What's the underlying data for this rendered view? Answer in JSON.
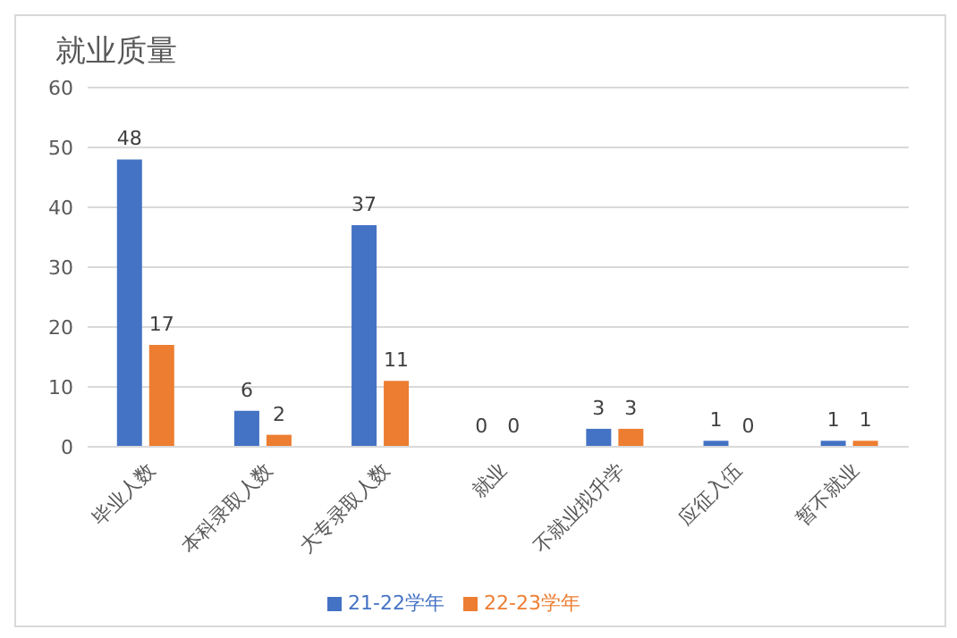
{
  "chart_data": {
    "type": "bar",
    "title": "就业质量",
    "categories": [
      "毕业人数",
      "本科录取人数",
      "大专录取人数",
      "就业",
      "不就业拟升学",
      "应征入伍",
      "暂不就业"
    ],
    "series": [
      {
        "name": "21-22学年",
        "color": "#4472c4",
        "values": [
          48,
          6,
          37,
          0,
          3,
          1,
          1
        ]
      },
      {
        "name": "22-23学年",
        "color": "#ed7d31",
        "values": [
          17,
          2,
          11,
          0,
          3,
          0,
          1
        ]
      }
    ],
    "ylim": [
      0,
      60
    ],
    "yticks": [
      0,
      10,
      20,
      30,
      40,
      50,
      60
    ],
    "grid": "y",
    "legend": "bottom",
    "data_labels": true
  }
}
